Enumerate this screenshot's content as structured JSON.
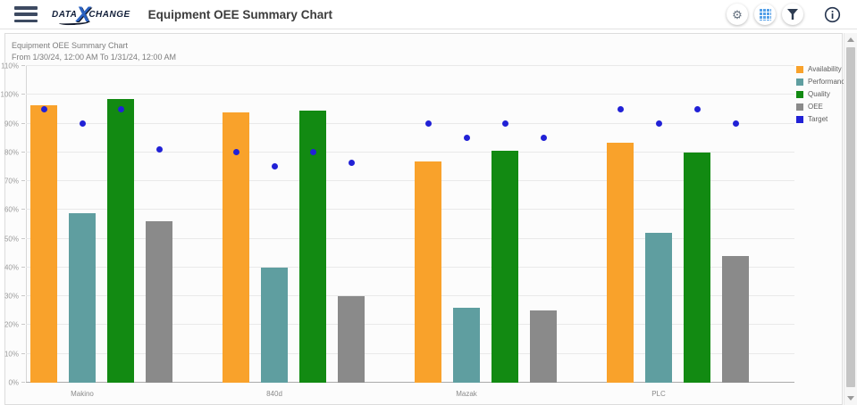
{
  "header": {
    "logo": {
      "word1": "DATA",
      "x": "X",
      "word2": "CHANGE"
    },
    "title": "Equipment OEE Summary Chart",
    "gear_glyph": "⚙",
    "actions": [
      {
        "icon": "gear-icon"
      },
      {
        "icon": "grid-icon"
      },
      {
        "icon": "filter-icon"
      },
      {
        "icon": "info-icon"
      }
    ]
  },
  "chart_header": {
    "title": "Equipment OEE Summary Chart",
    "subtitle": "From 1/30/24, 12:00 AM To 1/31/24, 12:00 AM"
  },
  "chart_data": {
    "type": "bar",
    "title": "Equipment OEE Summary Chart",
    "subtitle": "From 1/30/24, 12:00 AM To 1/31/24, 12:00 AM",
    "categories": [
      "Makino",
      "840d",
      "Mazak",
      "PLC"
    ],
    "bar_series": [
      {
        "name": "Availability",
        "color": "#F9A22B",
        "values": [
          96.5,
          94,
          77,
          83.5
        ]
      },
      {
        "name": "Performance",
        "color": "#5F9EA0",
        "values": [
          59,
          40,
          26,
          52
        ]
      },
      {
        "name": "Quality",
        "color": "#128A12",
        "values": [
          98.5,
          94.5,
          80.5,
          80
        ]
      },
      {
        "name": "OEE",
        "color": "#8A8A8A",
        "values": [
          56,
          30,
          25,
          44
        ]
      }
    ],
    "target_series": {
      "name": "Target",
      "color": "#2121D6",
      "marker": "circle",
      "points_per_category": [
        [
          95,
          90,
          95,
          81
        ],
        [
          80,
          75,
          80,
          76.5
        ],
        [
          90,
          85,
          90,
          85
        ],
        [
          95,
          90,
          95,
          90
        ]
      ]
    },
    "ylim": [
      0,
      110
    ],
    "y_tick_step": 10,
    "y_tick_suffix": "%",
    "grid": true,
    "legend_position": "top-right"
  },
  "colors": {
    "availability": "#F9A22B",
    "performance": "#5F9EA0",
    "quality": "#128A12",
    "oee": "#8A8A8A",
    "target": "#2121D6",
    "grid_icon_blue": "#55A0E8"
  }
}
